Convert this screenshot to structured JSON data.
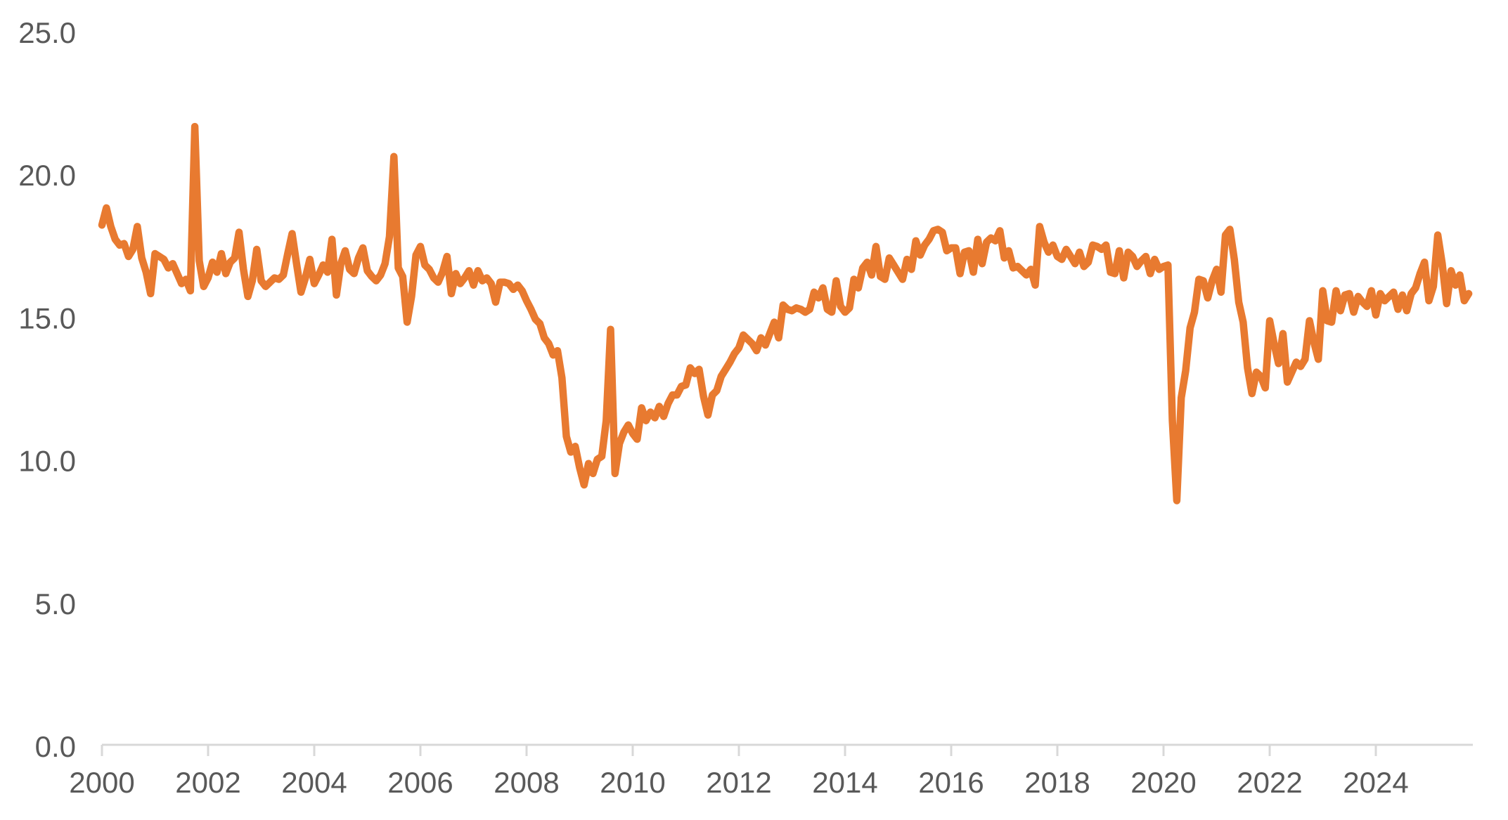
{
  "chart_data": {
    "type": "line",
    "title": "",
    "frequency": "monthly",
    "start_month": "2000-01",
    "end_month": "2025-10",
    "x_tick_labels": [
      "2000",
      "2002",
      "2004",
      "2006",
      "2008",
      "2010",
      "2012",
      "2014",
      "2016",
      "2018",
      "2020",
      "2022",
      "2024"
    ],
    "x_tick_years": [
      2000,
      2002,
      2004,
      2006,
      2008,
      2010,
      2012,
      2014,
      2016,
      2018,
      2020,
      2022,
      2024
    ],
    "y_ticks": [
      0,
      5,
      10,
      15,
      20,
      25
    ],
    "y_tick_labels": [
      "0.0",
      "5.0",
      "10.0",
      "15.0",
      "20.0",
      "25.0"
    ],
    "ylim": [
      0,
      25
    ],
    "xlim_years": [
      2000,
      2025.83
    ],
    "grid": false,
    "legend": "none",
    "line_color": "#E87A30",
    "axis_color": "#D8D8D8",
    "label_color": "#595959",
    "values": [
      18.25,
      18.85,
      18.2,
      17.75,
      17.55,
      17.6,
      17.15,
      17.4,
      18.2,
      17.1,
      16.6,
      15.85,
      17.25,
      17.15,
      17.05,
      16.75,
      16.9,
      16.55,
      16.2,
      16.35,
      15.95,
      21.7,
      17.0,
      16.1,
      16.4,
      16.95,
      16.6,
      17.25,
      16.55,
      16.95,
      17.1,
      18.0,
      16.7,
      15.75,
      16.3,
      17.4,
      16.3,
      16.1,
      16.25,
      16.4,
      16.35,
      16.5,
      17.25,
      17.95,
      16.9,
      15.9,
      16.4,
      17.05,
      16.2,
      16.5,
      16.85,
      16.6,
      17.75,
      15.8,
      16.9,
      17.35,
      16.7,
      16.55,
      17.1,
      17.45,
      16.65,
      16.45,
      16.3,
      16.5,
      16.9,
      17.85,
      20.65,
      16.75,
      16.45,
      14.85,
      15.75,
      17.2,
      17.5,
      16.85,
      16.7,
      16.4,
      16.25,
      16.6,
      17.15,
      15.85,
      16.55,
      16.2,
      16.4,
      16.65,
      16.15,
      16.65,
      16.3,
      16.4,
      16.2,
      15.55,
      16.25,
      16.25,
      16.2,
      16.0,
      16.15,
      15.95,
      15.6,
      15.3,
      14.95,
      14.8,
      14.3,
      14.1,
      13.7,
      13.85,
      12.9,
      10.85,
      10.3,
      10.5,
      9.75,
      9.15,
      9.9,
      9.55,
      10.05,
      10.15,
      11.4,
      14.6,
      9.55,
      10.6,
      11.0,
      11.25,
      10.95,
      10.75,
      11.85,
      11.4,
      11.7,
      11.5,
      11.9,
      11.55,
      12.0,
      12.3,
      12.3,
      12.6,
      12.65,
      13.25,
      13.05,
      13.2,
      12.25,
      11.6,
      12.3,
      12.45,
      12.95,
      13.2,
      13.45,
      13.75,
      13.95,
      14.4,
      14.25,
      14.1,
      13.85,
      14.3,
      14.05,
      14.45,
      14.85,
      14.3,
      15.45,
      15.3,
      15.25,
      15.35,
      15.3,
      15.2,
      15.3,
      15.9,
      15.7,
      16.05,
      15.3,
      15.2,
      16.3,
      15.4,
      15.2,
      15.35,
      16.35,
      16.05,
      16.75,
      16.95,
      16.5,
      17.5,
      16.45,
      16.35,
      17.1,
      16.85,
      16.6,
      16.35,
      17.05,
      16.7,
      17.7,
      17.2,
      17.55,
      17.75,
      18.05,
      18.1,
      18.0,
      17.35,
      17.45,
      17.45,
      16.55,
      17.3,
      17.35,
      16.6,
      17.75,
      16.9,
      17.65,
      17.8,
      17.7,
      18.05,
      17.1,
      17.35,
      16.75,
      16.8,
      16.65,
      16.5,
      16.7,
      16.15,
      18.2,
      17.65,
      17.3,
      17.55,
      17.15,
      17.05,
      17.4,
      17.15,
      16.9,
      17.3,
      16.8,
      16.95,
      17.55,
      17.5,
      17.4,
      17.55,
      16.6,
      16.55,
      17.35,
      16.4,
      17.3,
      17.15,
      16.8,
      17.0,
      17.15,
      16.55,
      17.05,
      16.7,
      16.8,
      16.85,
      11.4,
      8.6,
      12.2,
      13.15,
      14.65,
      15.2,
      16.35,
      16.3,
      15.7,
      16.3,
      16.7,
      15.9,
      17.9,
      18.1,
      17.05,
      15.55,
      14.85,
      13.25,
      12.35,
      13.1,
      12.95,
      12.55,
      14.9,
      14.1,
      13.4,
      14.45,
      12.75,
      13.1,
      13.45,
      13.3,
      13.55,
      14.9,
      14.15,
      13.55,
      15.95,
      14.9,
      14.85,
      15.95,
      15.25,
      15.8,
      15.85,
      15.2,
      15.75,
      15.55,
      15.4,
      15.95,
      15.1,
      15.85,
      15.6,
      15.75,
      15.9,
      15.3,
      15.8,
      15.25,
      15.85,
      16.05,
      16.55,
      16.95,
      15.6,
      16.1,
      17.9,
      16.9,
      15.5,
      16.65,
      16.15,
      16.5,
      15.6,
      15.85
    ]
  }
}
